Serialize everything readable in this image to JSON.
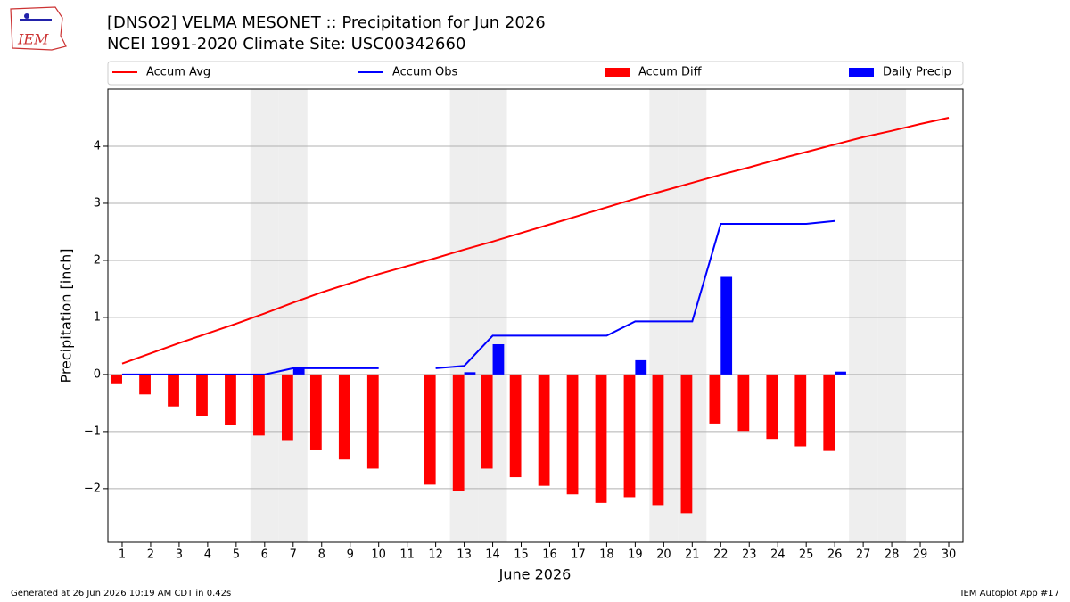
{
  "logo": "IEM",
  "footer": {
    "left": "Generated at 26 Jun 2026 10:19 AM CDT in 0.42s",
    "right": "IEM Autoplot App #17"
  },
  "chart_data": {
    "type": "combo",
    "title": "[DNSO2] VELMA MESONET :: Precipitation for Jun 2026",
    "subtitle": "NCEI 1991-2020 Climate Site: USC00342660",
    "x_label": "June 2026",
    "y_label": "Precipitation [inch]",
    "legend": "top",
    "grid": "y",
    "shade_color": "#eeeeee",
    "shaded_days": [
      6,
      7,
      13,
      14,
      20,
      21,
      27,
      28
    ],
    "x": [
      1,
      2,
      3,
      4,
      5,
      6,
      7,
      8,
      9,
      10,
      11,
      12,
      13,
      14,
      15,
      16,
      17,
      18,
      19,
      20,
      21,
      22,
      23,
      24,
      25,
      26,
      27,
      28,
      29,
      30
    ],
    "xlim": [
      0.5,
      30.5
    ],
    "xticks": [
      1,
      2,
      3,
      4,
      5,
      6,
      7,
      8,
      9,
      10,
      11,
      12,
      13,
      14,
      15,
      16,
      17,
      18,
      19,
      20,
      21,
      22,
      23,
      24,
      25,
      26,
      27,
      28,
      29,
      30
    ],
    "ylim": [
      -2.94,
      5.0
    ],
    "yticks": [
      {
        "value": -2,
        "label": "−2"
      },
      {
        "value": -1,
        "label": "−1"
      },
      0,
      1,
      2,
      3,
      4
    ],
    "series": [
      {
        "name": "Accum Avg",
        "type": "line",
        "color": "#ff0000",
        "values": [
          0.19,
          0.37,
          0.55,
          0.72,
          0.89,
          1.07,
          1.26,
          1.44,
          1.6,
          1.76,
          1.9,
          2.04,
          2.19,
          2.33,
          2.48,
          2.63,
          2.78,
          2.93,
          3.08,
          3.22,
          3.36,
          3.5,
          3.63,
          3.77,
          3.9,
          4.03,
          4.16,
          4.27,
          4.39,
          4.5
        ]
      },
      {
        "name": "Accum Obs",
        "type": "line",
        "color": "#0000ff",
        "values": [
          0,
          0,
          0,
          0,
          0,
          0,
          0.11,
          0.11,
          0.11,
          0.11,
          null,
          0.11,
          0.15,
          0.68,
          0.68,
          0.68,
          0.68,
          0.68,
          0.93,
          0.93,
          0.93,
          2.64,
          2.64,
          2.64,
          2.64,
          2.69,
          null,
          null,
          null,
          null
        ]
      },
      {
        "name": "Accum Diff",
        "type": "bar",
        "side": "left",
        "color": "#ff0000",
        "values": [
          -0.17,
          -0.35,
          -0.56,
          -0.73,
          -0.89,
          -1.07,
          -1.15,
          -1.33,
          -1.49,
          -1.65,
          null,
          -1.93,
          -2.04,
          -1.65,
          -1.8,
          -1.95,
          -2.1,
          -2.25,
          -2.15,
          -2.29,
          -2.43,
          -0.86,
          -0.99,
          -1.13,
          -1.26,
          -1.34,
          null,
          null,
          null,
          null
        ]
      },
      {
        "name": "Daily Precip",
        "type": "bar",
        "side": "right",
        "color": "#0000ff",
        "values": [
          0,
          0,
          0,
          0,
          0,
          0,
          0.11,
          0,
          0,
          0,
          null,
          0,
          0.04,
          0.53,
          0,
          0,
          0,
          0,
          0.25,
          0,
          0,
          1.71,
          0,
          0,
          0,
          0.05,
          null,
          null,
          null,
          null
        ]
      }
    ]
  }
}
